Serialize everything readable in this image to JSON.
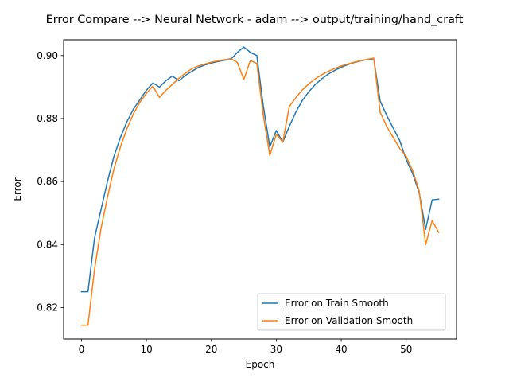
{
  "chart_data": {
    "type": "line",
    "title": "Error Compare --> Neural Network - adam --> output/training/hand_craft",
    "xlabel": "Epoch",
    "ylabel": "Error",
    "xlim": [
      -2.75,
      57.75
    ],
    "ylim": [
      0.81,
      0.905
    ],
    "xticks": [
      0,
      10,
      20,
      30,
      40,
      50
    ],
    "yticks": [
      0.82,
      0.84,
      0.86,
      0.88,
      0.9
    ],
    "ytick_labels": [
      "0.82",
      "0.84",
      "0.86",
      "0.88",
      "0.90"
    ],
    "grid": false,
    "legend_position": "lower-right",
    "x": [
      0,
      1,
      2,
      3,
      4,
      5,
      6,
      7,
      8,
      9,
      10,
      11,
      12,
      13,
      14,
      15,
      16,
      17,
      18,
      19,
      20,
      21,
      22,
      23,
      24,
      25,
      26,
      27,
      28,
      29,
      30,
      31,
      32,
      33,
      34,
      35,
      36,
      37,
      38,
      39,
      40,
      41,
      42,
      43,
      44,
      45,
      46,
      47,
      48,
      49,
      50,
      51,
      52,
      53,
      54,
      55
    ],
    "series": [
      {
        "name": "Error on Train Smooth",
        "color": "#1f77b4",
        "values": [
          0.825,
          0.825,
          0.842,
          0.851,
          0.86,
          0.868,
          0.874,
          0.879,
          0.883,
          0.886,
          0.889,
          0.8913,
          0.89,
          0.892,
          0.8935,
          0.892,
          0.8937,
          0.895,
          0.8962,
          0.897,
          0.8976,
          0.8981,
          0.8985,
          0.8988,
          0.901,
          0.9027,
          0.901,
          0.9,
          0.884,
          0.871,
          0.8762,
          0.8725,
          0.8775,
          0.882,
          0.8857,
          0.8885,
          0.8908,
          0.8926,
          0.8941,
          0.8953,
          0.8963,
          0.8971,
          0.8978,
          0.8983,
          0.8987,
          0.899,
          0.8855,
          0.881,
          0.877,
          0.873,
          0.867,
          0.8625,
          0.8565,
          0.8448,
          0.8542,
          0.8544
        ]
      },
      {
        "name": "Error on Validation Smooth",
        "color": "#ff7f0e",
        "values": [
          0.8144,
          0.8144,
          0.832,
          0.845,
          0.855,
          0.864,
          0.871,
          0.8768,
          0.8815,
          0.8852,
          0.888,
          0.8903,
          0.8867,
          0.889,
          0.8908,
          0.8928,
          0.8944,
          0.8958,
          0.8967,
          0.8973,
          0.8979,
          0.8983,
          0.8987,
          0.899,
          0.8978,
          0.8924,
          0.8984,
          0.8975,
          0.881,
          0.8683,
          0.875,
          0.8725,
          0.8838,
          0.8866,
          0.8891,
          0.891,
          0.8926,
          0.8939,
          0.895,
          0.8959,
          0.8967,
          0.8973,
          0.8979,
          0.8984,
          0.8988,
          0.8992,
          0.882,
          0.8775,
          0.874,
          0.8705,
          0.868,
          0.8635,
          0.857,
          0.84,
          0.8476,
          0.8439
        ]
      }
    ]
  }
}
